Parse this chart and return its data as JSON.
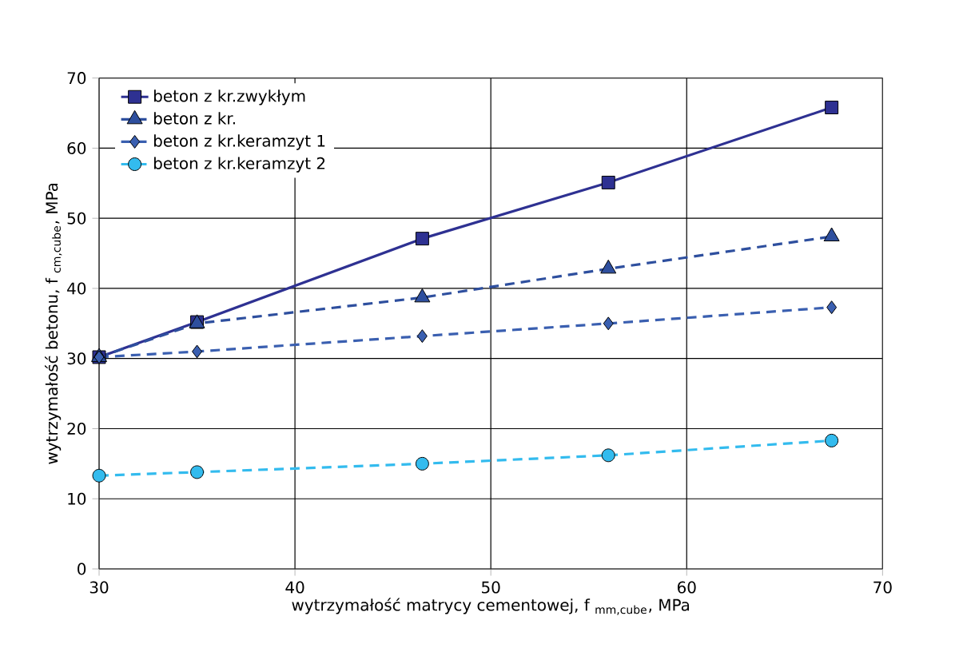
{
  "chart_data": {
    "type": "line",
    "xlabel": "wytrzymałość matrycy cementowej, f $_{mm,cube}$, MPa",
    "ylabel": "wytrzymałość betonu, f $_{cm,cube}$, MPa",
    "x": [
      30,
      35,
      46.5,
      56,
      67.4
    ],
    "series": [
      {
        "name": "beton z kr.zwykłym",
        "color": "#2e3192",
        "marker": "square",
        "line_style": "solid",
        "values": [
          30.2,
          35.2,
          47.1,
          55.1,
          65.8
        ]
      },
      {
        "name": "beton z kr.",
        "color": "#2e4f9e",
        "marker": "triangle",
        "line_style": "dashed",
        "values": [
          30.2,
          35.0,
          38.7,
          42.8,
          47.4
        ]
      },
      {
        "name": "beton z kr.keramzyt 1",
        "color": "#3a5fb0",
        "marker": "diamond",
        "line_style": "dashed",
        "values": [
          30.2,
          31.0,
          33.2,
          35.0,
          37.3
        ]
      },
      {
        "name": "beton z kr.keramzyt 2",
        "color": "#33bbee",
        "marker": "circle",
        "line_style": "dashed",
        "values": [
          13.3,
          13.8,
          15.0,
          16.2,
          18.3
        ]
      }
    ],
    "xlim": [
      30,
      70
    ],
    "ylim": [
      0,
      70
    ],
    "xticks": [
      30,
      40,
      50,
      60,
      70
    ],
    "yticks": [
      0,
      10,
      20,
      30,
      40,
      50,
      60,
      70
    ],
    "grid": true,
    "legend": "top left"
  }
}
